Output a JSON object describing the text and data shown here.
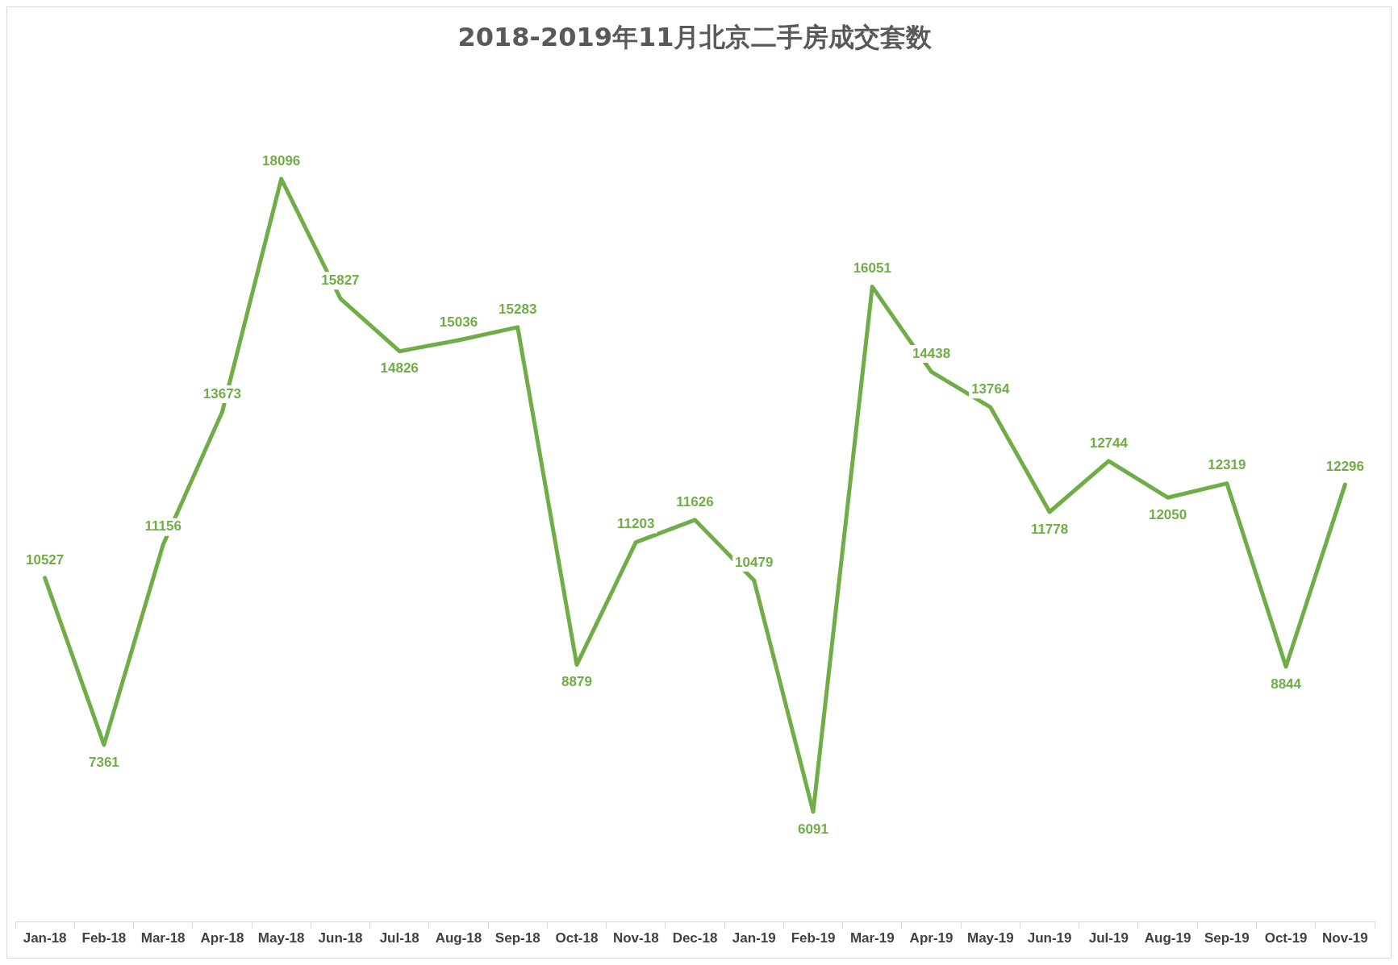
{
  "chart_data": {
    "type": "line",
    "title": "2018-2019年11月北京二手房成交套数",
    "categories": [
      "Jan-18",
      "Feb-18",
      "Mar-18",
      "Apr-18",
      "May-18",
      "Jun-18",
      "Jul-18",
      "Aug-18",
      "Sep-18",
      "Oct-18",
      "Nov-18",
      "Dec-18",
      "Jan-19",
      "Feb-19",
      "Mar-19",
      "Apr-19",
      "May-19",
      "Jun-19",
      "Jul-19",
      "Aug-19",
      "Sep-19",
      "Oct-19",
      "Nov-19"
    ],
    "values": [
      10527,
      7361,
      11156,
      13673,
      18096,
      15827,
      14826,
      15036,
      15283,
      8879,
      11203,
      11626,
      10479,
      6091,
      16051,
      14438,
      13764,
      11778,
      12744,
      12050,
      12319,
      8844,
      12296
    ],
    "color": "#70ad47",
    "data_labels": true,
    "grid": false,
    "legend": false,
    "marker": "none",
    "tick_labels": "x"
  }
}
